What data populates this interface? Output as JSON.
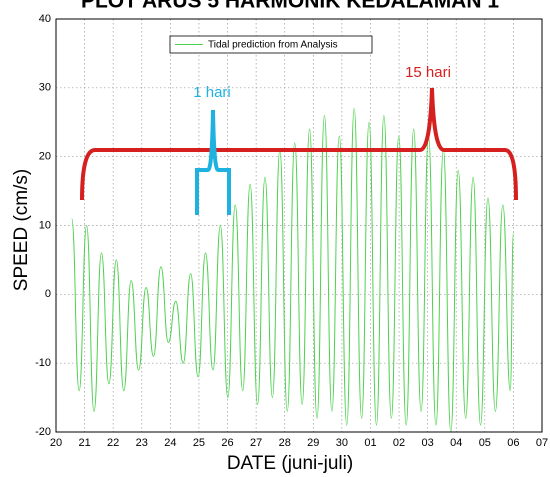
{
  "chart_data": {
    "type": "line",
    "title": "PLOT ARUS 5 HARMONIK KEDALAMAN 1",
    "x_label": "DATE (juni-juli)",
    "y_label": "SPEED (cm/s)",
    "x": [
      20.55,
      20.81,
      21.07,
      21.33,
      21.59,
      21.85,
      22.11,
      22.37,
      22.63,
      22.89,
      23.15,
      23.41,
      23.67,
      23.93,
      24.19,
      24.45,
      24.71,
      24.97,
      25.23,
      25.49,
      25.75,
      26.01,
      26.27,
      26.53,
      26.79,
      27.05,
      27.31,
      27.57,
      27.83,
      28.09,
      28.35,
      28.61,
      28.87,
      29.13,
      29.39,
      29.65,
      29.91,
      30.17,
      30.43,
      30.69,
      30.95,
      31.21,
      31.47,
      31.73,
      31.99,
      32.25,
      32.51,
      32.77,
      33.03,
      33.29,
      33.55,
      33.81,
      34.07,
      34.33,
      34.59,
      34.85,
      35.11,
      35.37,
      35.63,
      35.89,
      36.0
    ],
    "series": [
      {
        "name": "Tidal prediction from Analysis",
        "color": "#4fd24f",
        "values": [
          11,
          -14,
          10,
          -17,
          6,
          -13,
          5,
          -14,
          2,
          -11,
          1,
          -9,
          4,
          -7,
          -1,
          -10,
          3,
          -12,
          6,
          -11,
          10,
          -15,
          13,
          -14,
          16,
          -16,
          17,
          -15,
          21,
          -17,
          22,
          -16,
          24,
          -18,
          26,
          -17,
          23,
          -19,
          27,
          -18,
          25,
          -19,
          26,
          -18,
          23,
          -19,
          24,
          -17,
          23,
          -19,
          21,
          -20,
          18,
          -18,
          17,
          -19,
          14,
          -17,
          13,
          -14,
          9
        ]
      }
    ],
    "xlim": [
      20,
      37
    ],
    "xticks": [
      20,
      21,
      22,
      23,
      24,
      25,
      26,
      27,
      28,
      29,
      30,
      {
        "value": 31,
        "label": "01"
      },
      {
        "value": 32,
        "label": "02"
      },
      {
        "value": 33,
        "label": "03"
      },
      {
        "value": 34,
        "label": "04"
      },
      {
        "value": 35,
        "label": "05"
      },
      {
        "value": 36,
        "label": "06"
      },
      {
        "value": 37,
        "label": "07"
      }
    ],
    "ylim": [
      -20,
      40
    ],
    "yticks": [
      -20,
      -10,
      0,
      10,
      20,
      30,
      40
    ],
    "grid": true,
    "annotations": [
      {
        "text": "1 hari",
        "color": "#1fb2e0"
      },
      {
        "text": "15 hari",
        "color": "#d62020"
      }
    ]
  }
}
